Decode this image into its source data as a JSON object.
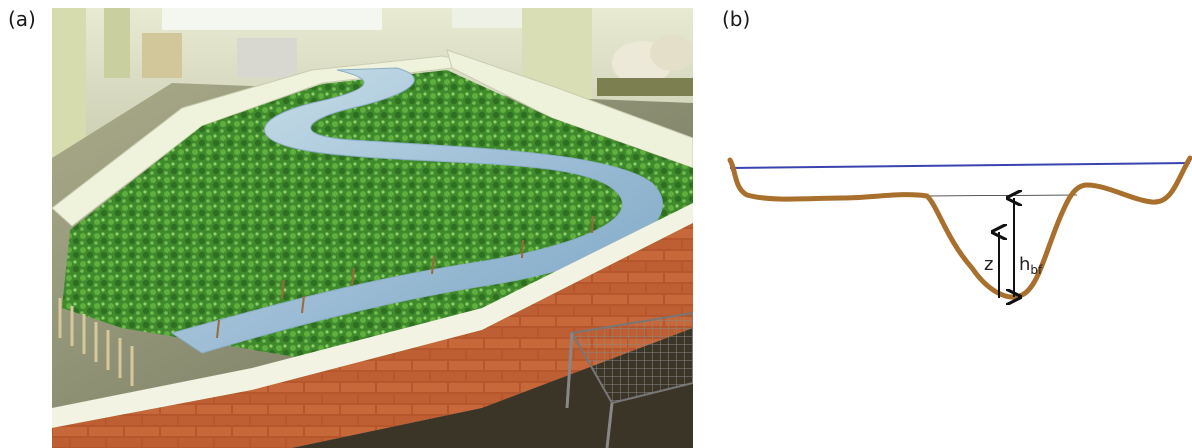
{
  "panel_a": {
    "label": "(a)"
  },
  "panel_b": {
    "label": "(b)",
    "label_z": "z",
    "label_h": "h",
    "label_h_sub": "bf",
    "colors": {
      "water_line": "#3a44b0",
      "bed": "#a8702c",
      "bankfull_line": "#222222"
    }
  }
}
